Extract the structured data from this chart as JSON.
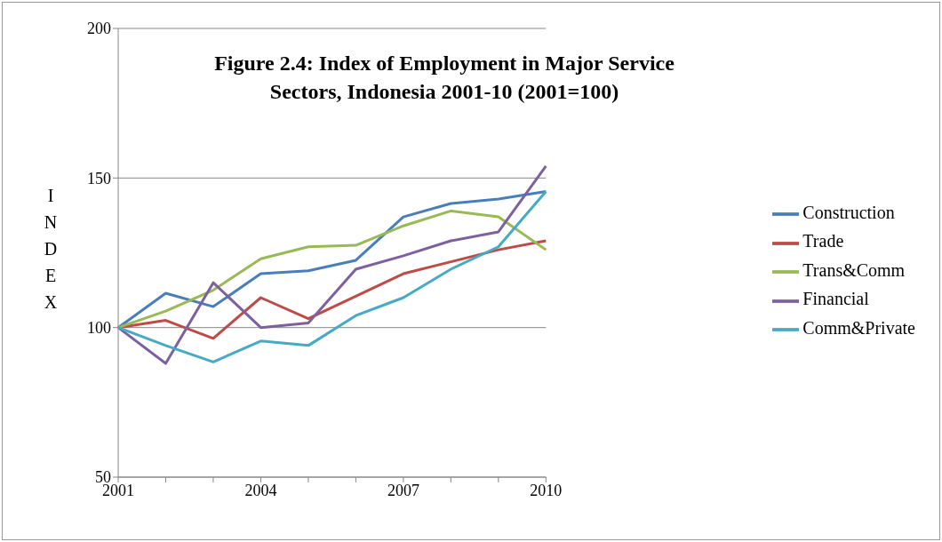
{
  "chart_data": {
    "type": "line",
    "title": "Figure 2.4: Index of Employment in Major Service Sectors, Indonesia 2001-10 (2001=100)",
    "ylabel": "INDEX",
    "categories": [
      "2001",
      null,
      null,
      "2004",
      null,
      null,
      "2007",
      null,
      null,
      "2010"
    ],
    "series": [
      {
        "name": "Construction",
        "color": "#4a7ebb",
        "values": [
          100,
          111.5,
          107,
          118,
          119,
          122.5,
          137,
          141.5,
          143,
          145.5
        ]
      },
      {
        "name": "Trade",
        "color": "#be4b48",
        "values": [
          100,
          102.4,
          96.4,
          110,
          103,
          110.5,
          118,
          122,
          126,
          129
        ]
      },
      {
        "name": "Trans&Comm",
        "color": "#98b954",
        "values": [
          100,
          105.5,
          112.5,
          123,
          127,
          127.5,
          134,
          139,
          137,
          126
        ]
      },
      {
        "name": "Financial",
        "color": "#7d60a0",
        "values": [
          100,
          88,
          115,
          100,
          101.5,
          119.5,
          124,
          129,
          132,
          154
        ]
      },
      {
        "name": "Comm&Private",
        "color": "#46aac5",
        "values": [
          100,
          94,
          88.5,
          95.5,
          94,
          104,
          110,
          119.5,
          127,
          145.5
        ]
      }
    ],
    "ylim": [
      50,
      200
    ],
    "yticks": [
      50,
      100,
      150,
      200
    ],
    "grid": "y",
    "legend": "right",
    "marker": "none",
    "line_style": "solid"
  }
}
